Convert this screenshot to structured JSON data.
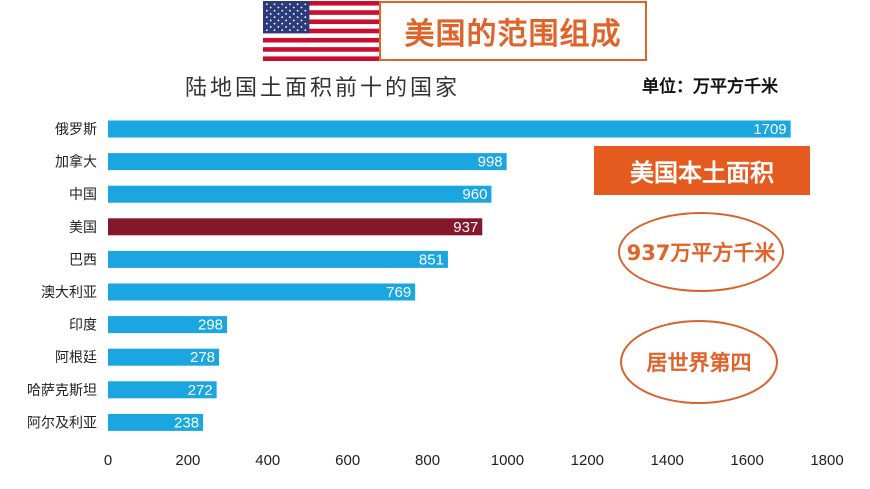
{
  "header": {
    "title": "美国的范围组成",
    "flag_icon": "us-flag-icon"
  },
  "annotations": {
    "unit": "单位：万平方千米",
    "mainland_area_label": "美国本土面积",
    "area_value": "937万平方千米",
    "rank_text": "居世界第四"
  },
  "colors": {
    "bar": "#1aa6e0",
    "highlight_bar": "#85172b",
    "accent": "#e0632a"
  },
  "chart_data": {
    "type": "bar",
    "orientation": "horizontal",
    "title": "陆地国土面积前十的国家",
    "categories": [
      "俄罗斯",
      "加拿大",
      "中国",
      "美国",
      "巴西",
      "澳大利亚",
      "印度",
      "阿根廷",
      "哈萨克斯坦",
      "阿尔及利亚"
    ],
    "values": [
      1709,
      998,
      960,
      937,
      851,
      769,
      298,
      278,
      272,
      238
    ],
    "data_labels": [
      "1709",
      "998",
      "960",
      "937",
      "851",
      "769",
      "298",
      "278",
      "272",
      "238"
    ],
    "highlight": "美国",
    "xlim": [
      0,
      1800
    ],
    "xticks": [
      0,
      200,
      400,
      600,
      800,
      1000,
      1200,
      1400,
      1600,
      1800
    ],
    "xtick_labels": [
      "0",
      "200",
      "400",
      "600",
      "800",
      "1000",
      "1200",
      "1400",
      "1600",
      "1800"
    ],
    "grid": false,
    "legend": "none"
  }
}
